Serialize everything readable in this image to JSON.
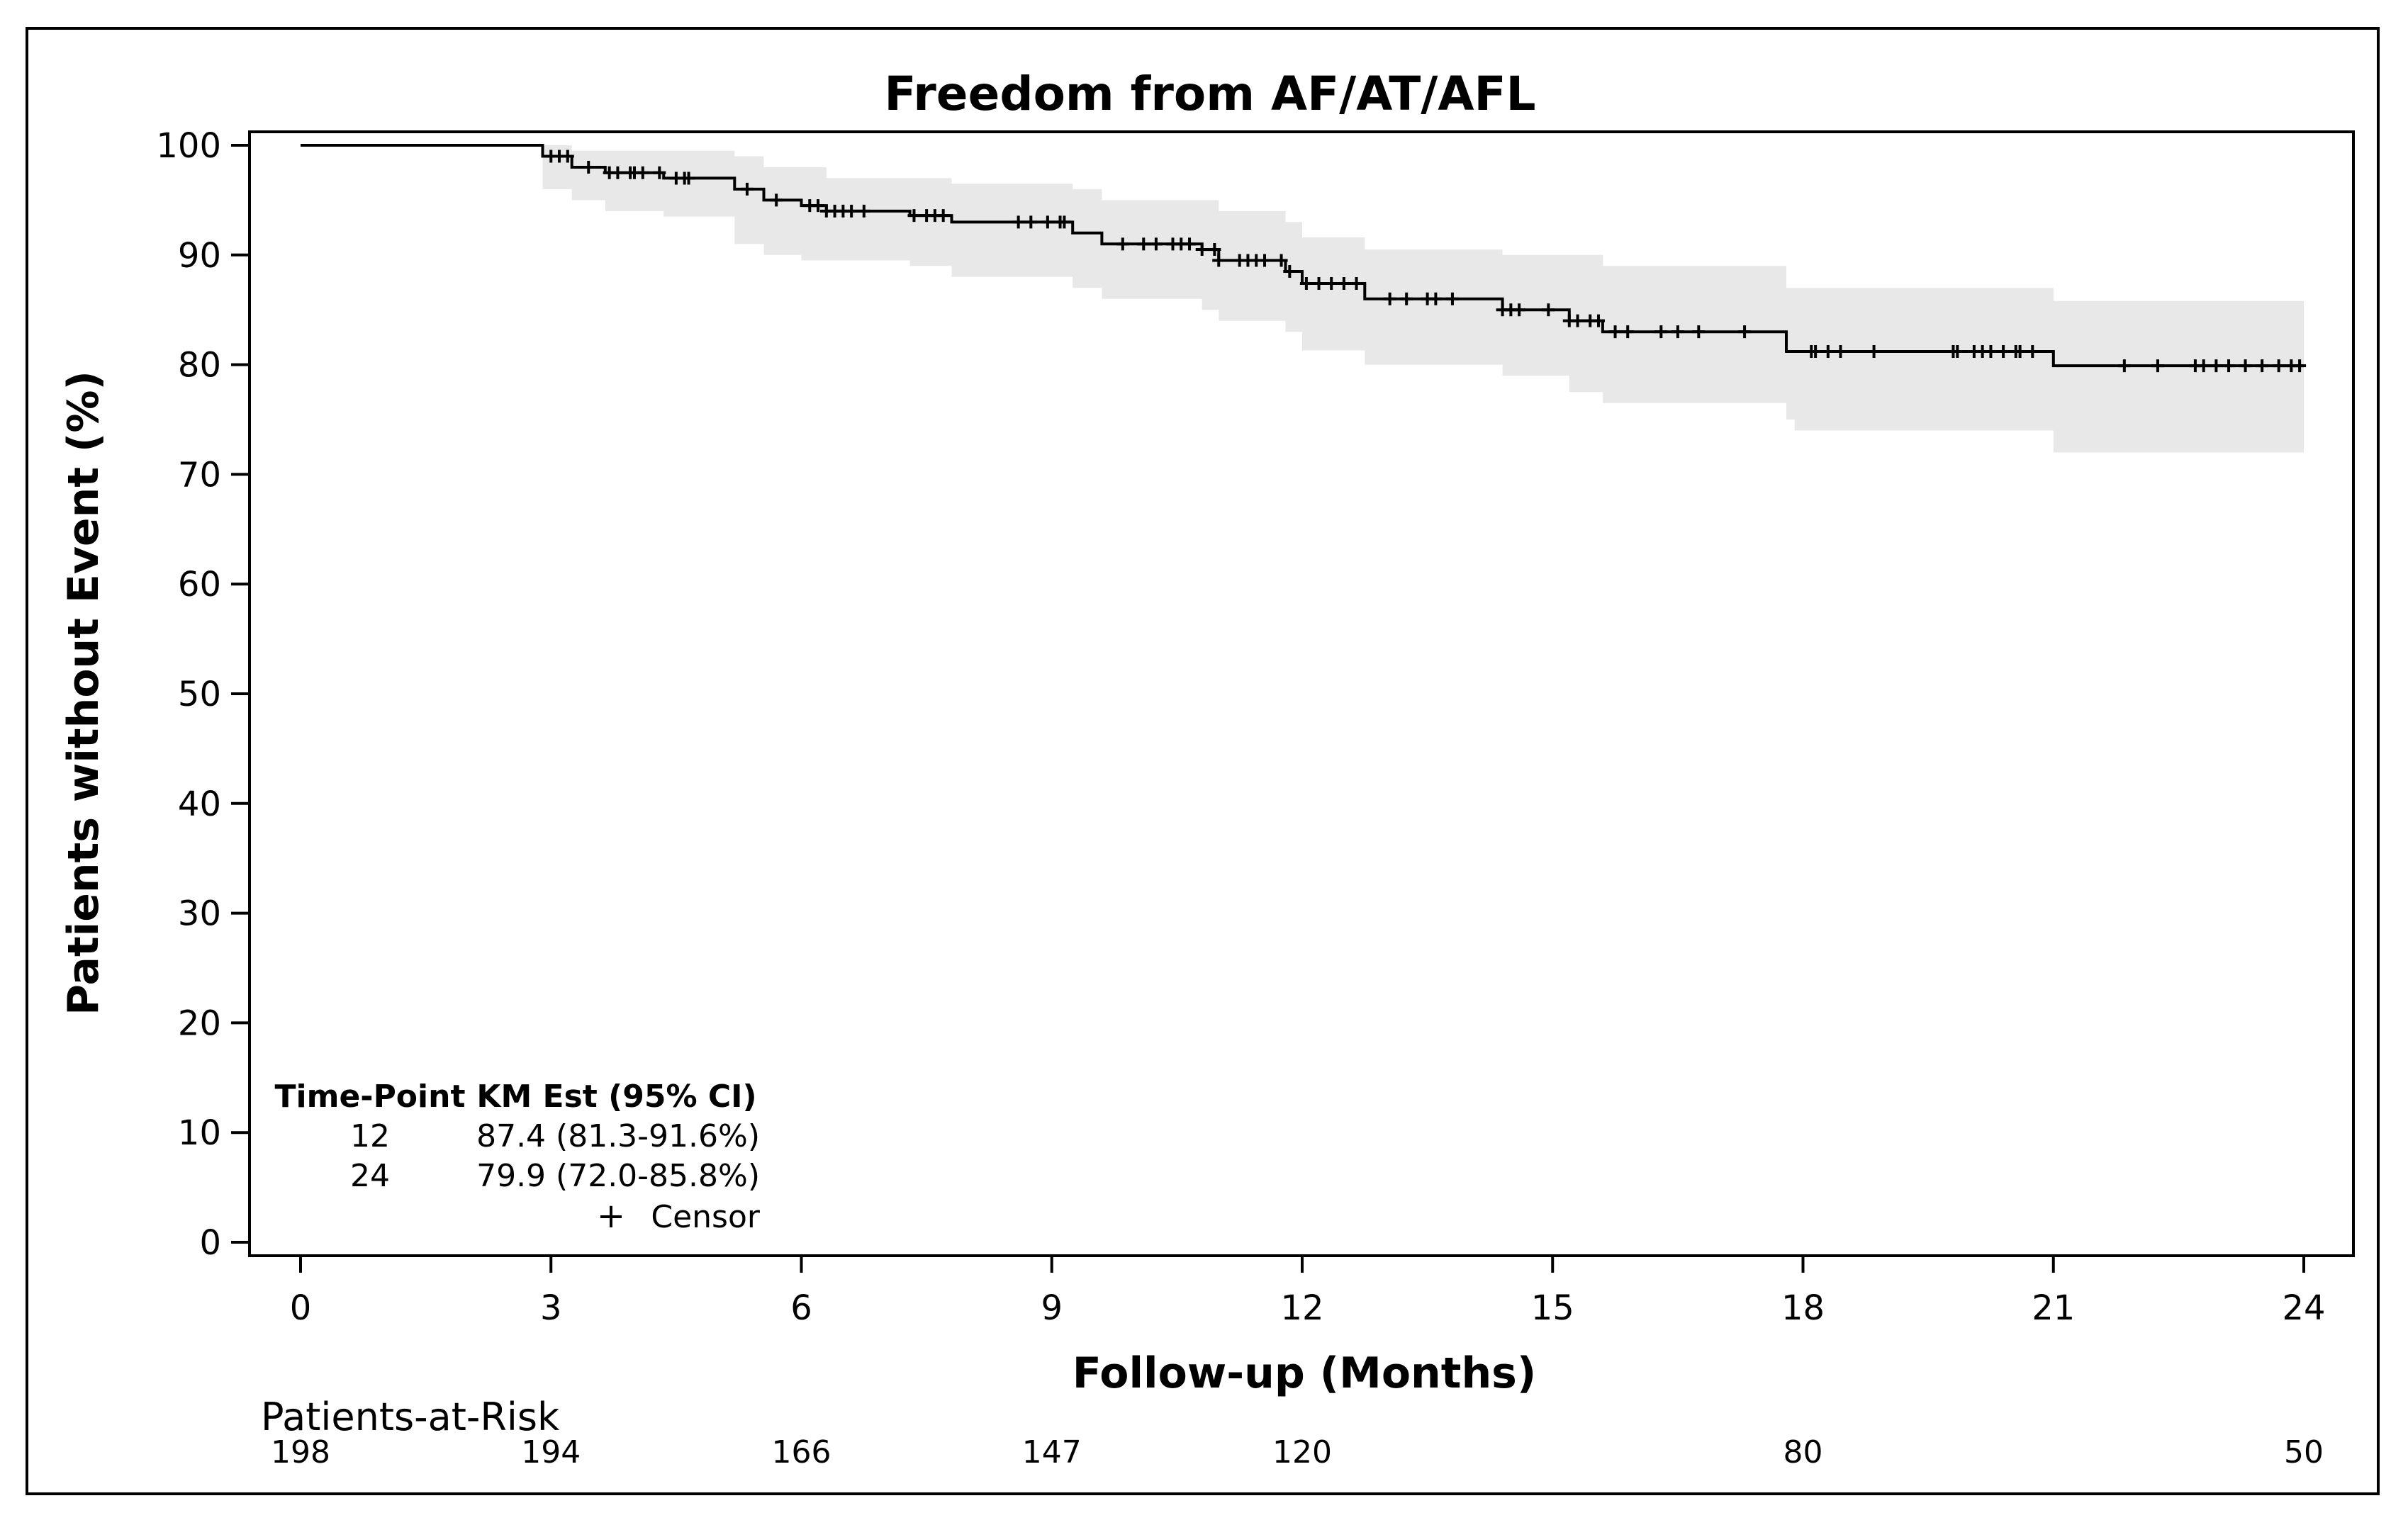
{
  "chart_data": {
    "type": "line",
    "subtype": "kaplan-meier",
    "title": "Freedom from AF/AT/AFL",
    "xlabel": "Follow-up (Months)",
    "ylabel": "Patients without Event (%)",
    "xlim": [
      0,
      24
    ],
    "ylim": [
      0,
      100
    ],
    "xticks": [
      0,
      3,
      6,
      9,
      12,
      15,
      18,
      21,
      24
    ],
    "yticks": [
      0,
      10,
      20,
      30,
      40,
      50,
      60,
      70,
      80,
      90,
      100
    ],
    "grid": false,
    "series": [
      {
        "name": "KM Estimate",
        "steps": [
          [
            0,
            100
          ],
          [
            2.9,
            99
          ],
          [
            3.25,
            98
          ],
          [
            3.65,
            97.5
          ],
          [
            4.35,
            97
          ],
          [
            5.2,
            96
          ],
          [
            5.55,
            95
          ],
          [
            6.0,
            94.5
          ],
          [
            6.3,
            94
          ],
          [
            7.3,
            93.6
          ],
          [
            7.8,
            93
          ],
          [
            9.25,
            92
          ],
          [
            9.6,
            91
          ],
          [
            10.8,
            90.5
          ],
          [
            11.0,
            89.5
          ],
          [
            11.8,
            88.5
          ],
          [
            12.0,
            87.4
          ],
          [
            12.75,
            86
          ],
          [
            14.4,
            85
          ],
          [
            15.2,
            84
          ],
          [
            15.6,
            83
          ],
          [
            17.8,
            81.2
          ],
          [
            21.0,
            79.9
          ],
          [
            24.0,
            79.9
          ]
        ],
        "ci_lower": [
          [
            0,
            100
          ],
          [
            2.9,
            96
          ],
          [
            3.25,
            95
          ],
          [
            3.65,
            94
          ],
          [
            4.35,
            93.5
          ],
          [
            5.2,
            91
          ],
          [
            5.55,
            90
          ],
          [
            6.0,
            89.5
          ],
          [
            7.3,
            89
          ],
          [
            7.8,
            88
          ],
          [
            9.25,
            87
          ],
          [
            9.6,
            86
          ],
          [
            10.8,
            85
          ],
          [
            11.0,
            84
          ],
          [
            11.8,
            83
          ],
          [
            12.0,
            81.3
          ],
          [
            12.75,
            80
          ],
          [
            14.4,
            79
          ],
          [
            15.2,
            77.5
          ],
          [
            15.6,
            76.5
          ],
          [
            17.8,
            75
          ],
          [
            17.9,
            74
          ],
          [
            21.0,
            72.0
          ],
          [
            24.0,
            72.0
          ]
        ],
        "ci_upper": [
          [
            0,
            100
          ],
          [
            2.9,
            100
          ],
          [
            3.25,
            99.5
          ],
          [
            5.2,
            99
          ],
          [
            5.55,
            98
          ],
          [
            6.3,
            97
          ],
          [
            7.8,
            96.5
          ],
          [
            9.25,
            96
          ],
          [
            9.6,
            95
          ],
          [
            11.0,
            94
          ],
          [
            11.8,
            93
          ],
          [
            12.0,
            91.6
          ],
          [
            12.75,
            90.5
          ],
          [
            14.4,
            90
          ],
          [
            15.6,
            89
          ],
          [
            17.8,
            87
          ],
          [
            21.0,
            85.8
          ],
          [
            24.0,
            85.8
          ]
        ],
        "censor_times": [
          3.0,
          3.1,
          3.2,
          3.45,
          3.7,
          3.8,
          3.95,
          4.0,
          4.1,
          4.3,
          4.5,
          4.6,
          4.65,
          5.35,
          5.7,
          6.1,
          6.2,
          6.3,
          6.4,
          6.5,
          6.6,
          6.75,
          7.35,
          7.5,
          7.6,
          7.7,
          8.6,
          8.75,
          8.95,
          9.1,
          9.15,
          9.85,
          10.1,
          10.25,
          10.45,
          10.55,
          10.65,
          10.8,
          10.95,
          11.0,
          11.25,
          11.35,
          11.45,
          11.55,
          11.75,
          11.85,
          12.05,
          12.2,
          12.35,
          12.5,
          12.65,
          13.05,
          13.25,
          13.5,
          13.6,
          13.8,
          14.4,
          14.5,
          14.6,
          14.95,
          15.2,
          15.3,
          15.45,
          15.55,
          15.75,
          15.9,
          16.3,
          16.5,
          16.75,
          17.3,
          18.1,
          18.15,
          18.3,
          18.45,
          18.85,
          19.8,
          19.85,
          20.05,
          20.15,
          20.25,
          20.4,
          20.55,
          20.6,
          20.75,
          21.85,
          22.25,
          22.7,
          22.8,
          22.95,
          23.1,
          23.3,
          23.5,
          23.7,
          23.85,
          23.95
        ]
      }
    ],
    "inset_table": {
      "headers": [
        "Time-Point",
        "KM Est (95% CI)"
      ],
      "rows": [
        [
          "12",
          "87.4 (81.3-91.6%)"
        ],
        [
          "24",
          "79.9 (72.0-85.8%)"
        ]
      ],
      "legend_label": "Censor",
      "legend_symbol": "+"
    },
    "risk_table": {
      "label": "Patients-at-Risk",
      "entries": [
        {
          "month": 0,
          "count": "198"
        },
        {
          "month": 3,
          "count": "194"
        },
        {
          "month": 6,
          "count": "166"
        },
        {
          "month": 9,
          "count": "147"
        },
        {
          "month": 12,
          "count": "120"
        },
        {
          "month": 18,
          "count": "80"
        },
        {
          "month": 24,
          "count": "50"
        }
      ]
    },
    "colors": {
      "line": "#000000",
      "ci_band": "#e8e8e8",
      "axis": "#000000"
    }
  }
}
